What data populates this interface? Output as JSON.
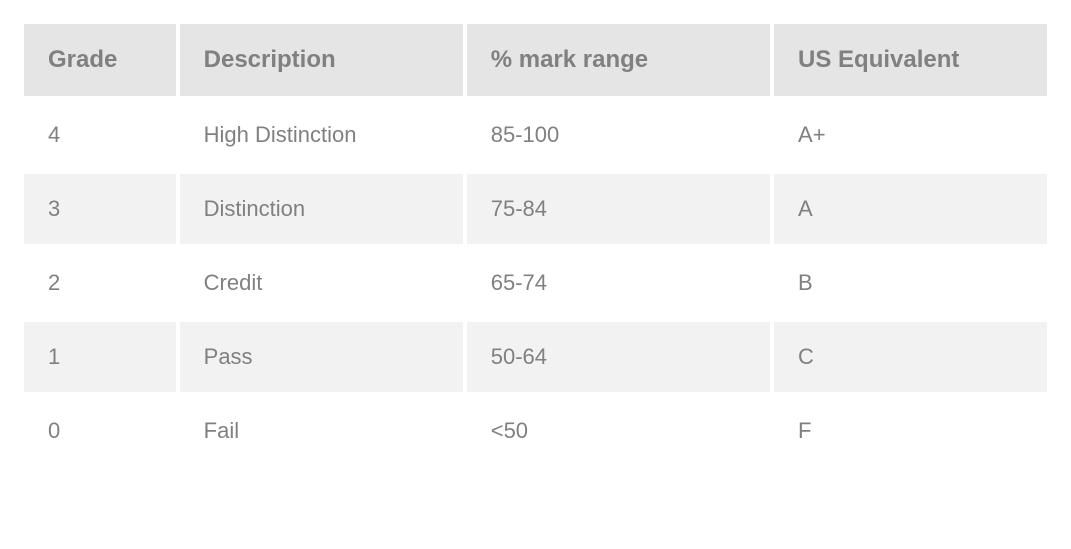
{
  "table": {
    "columns": [
      {
        "key": "grade",
        "label": "Grade",
        "width_pct": 15
      },
      {
        "key": "description",
        "label": "Description",
        "width_pct": 28
      },
      {
        "key": "range",
        "label": "% mark range",
        "width_pct": 30
      },
      {
        "key": "us",
        "label": "US Equivalent",
        "width_pct": 27
      }
    ],
    "rows": [
      {
        "grade": "4",
        "description": "High Distinction",
        "range": "85-100",
        "us": "A+"
      },
      {
        "grade": "3",
        "description": "Distinction",
        "range": "75-84",
        "us": "A"
      },
      {
        "grade": "2",
        "description": "Credit",
        "range": "65-74",
        "us": "B"
      },
      {
        "grade": "1",
        "description": "Pass",
        "range": "50-64",
        "us": "C"
      },
      {
        "grade": "0",
        "description": "Fail",
        "range": "<50",
        "us": "F"
      }
    ],
    "style": {
      "header_bg": "#e5e5e5",
      "header_text_color": "#808080",
      "header_font_size": 24,
      "header_font_weight": "bold",
      "row_odd_bg": "#ffffff",
      "row_even_bg": "#f2f2f2",
      "cell_text_color": "#808080",
      "cell_font_size": 22,
      "cell_padding_v": 22,
      "cell_padding_h": 24,
      "border_spacing": 4,
      "font_family": "Arial, Helvetica, sans-serif"
    }
  }
}
